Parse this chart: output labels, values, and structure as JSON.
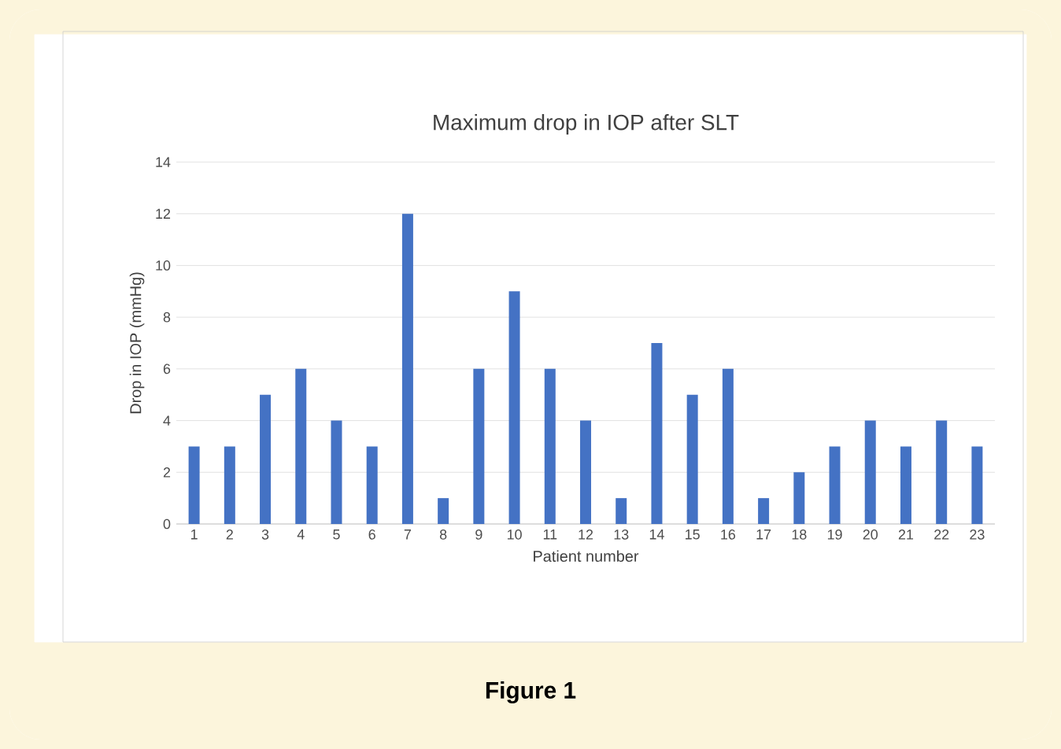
{
  "chart_data": {
    "type": "bar",
    "title": "Maximum drop in IOP after SLT",
    "xlabel": "Patient number",
    "ylabel": "Drop in IOP (mmHg)",
    "categories": [
      "1",
      "2",
      "3",
      "4",
      "5",
      "6",
      "7",
      "8",
      "9",
      "10",
      "11",
      "12",
      "13",
      "14",
      "15",
      "16",
      "17",
      "18",
      "19",
      "20",
      "21",
      "22",
      "23"
    ],
    "values": [
      3,
      3,
      5,
      6,
      4,
      3,
      12,
      1,
      6,
      9,
      6,
      4,
      1,
      7,
      5,
      6,
      1,
      2,
      3,
      4,
      3,
      4,
      3
    ],
    "color": "#4472c4",
    "ylim": [
      0,
      14
    ],
    "yticks": [
      0,
      2,
      4,
      6,
      8,
      10,
      12,
      14
    ],
    "grid": "y",
    "annotations": [
      "Figure 1"
    ]
  }
}
